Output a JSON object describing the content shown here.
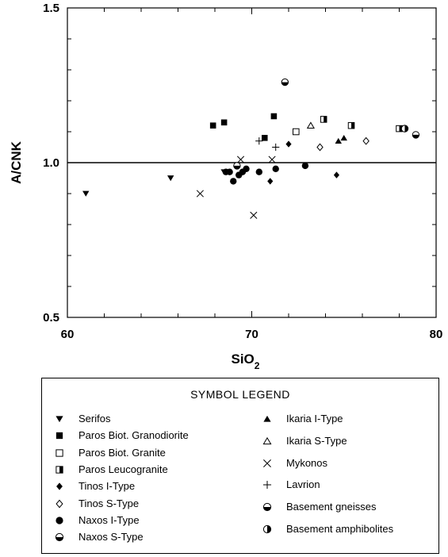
{
  "chart_data": {
    "type": "scatter",
    "xlabel": "SiO",
    "xlabel_sub": "2",
    "ylabel": "A/CNK",
    "xlim": [
      60,
      80
    ],
    "ylim": [
      0.5,
      1.5
    ],
    "x_ticks": [
      "60",
      "70",
      "80"
    ],
    "y_ticks": [
      "0.5",
      "1.0",
      "1.5"
    ],
    "reference_line_y": 1.0,
    "legend_title": "SYMBOL LEGEND",
    "legend_position": "below",
    "series": [
      {
        "name": "Serifos",
        "marker": "triangle-down-filled",
        "points": [
          [
            61.0,
            0.9
          ],
          [
            65.6,
            0.95
          ],
          [
            68.5,
            0.97
          ]
        ]
      },
      {
        "name": "Paros Biot. Granodiorite",
        "marker": "square-filled",
        "points": [
          [
            67.9,
            1.12
          ],
          [
            68.5,
            1.13
          ],
          [
            70.7,
            1.08
          ],
          [
            71.2,
            1.15
          ]
        ]
      },
      {
        "name": "Paros Biot. Granite",
        "marker": "square-open",
        "points": [
          [
            72.4,
            1.1
          ]
        ]
      },
      {
        "name": "Paros Leucogranite",
        "marker": "square-half",
        "points": [
          [
            73.9,
            1.14
          ],
          [
            75.4,
            1.12
          ],
          [
            78.0,
            1.11
          ]
        ]
      },
      {
        "name": "Tinos I-Type",
        "marker": "diamond-filled",
        "points": [
          [
            71.0,
            0.94
          ],
          [
            72.0,
            1.06
          ],
          [
            74.6,
            0.96
          ]
        ]
      },
      {
        "name": "Tinos S-Type",
        "marker": "diamond-open",
        "points": [
          [
            73.7,
            1.05
          ],
          [
            76.2,
            1.07
          ]
        ]
      },
      {
        "name": "Naxos I-Type",
        "marker": "circle-filled",
        "points": [
          [
            68.6,
            0.97
          ],
          [
            68.8,
            0.97
          ],
          [
            69.0,
            0.94
          ],
          [
            69.3,
            0.96
          ],
          [
            69.5,
            0.97
          ],
          [
            69.7,
            0.98
          ],
          [
            70.4,
            0.97
          ],
          [
            71.3,
            0.98
          ],
          [
            72.9,
            0.99
          ]
        ]
      },
      {
        "name": "Naxos S-Type",
        "marker": "circle-half-bottom",
        "points": [
          [
            69.2,
            0.99
          ],
          [
            71.8,
            1.26
          ]
        ]
      },
      {
        "name": "Ikaria I-Type",
        "marker": "triangle-up-filled",
        "points": [
          [
            74.7,
            1.07
          ],
          [
            75.0,
            1.08
          ]
        ]
      },
      {
        "name": "Ikaria S-Type",
        "marker": "triangle-up-open",
        "points": [
          [
            73.2,
            1.12
          ]
        ]
      },
      {
        "name": "Mykonos",
        "marker": "cross-x",
        "points": [
          [
            67.2,
            0.9
          ],
          [
            69.4,
            1.01
          ],
          [
            70.1,
            0.83
          ],
          [
            71.1,
            1.01
          ]
        ]
      },
      {
        "name": "Lavrion",
        "marker": "plus",
        "points": [
          [
            70.4,
            1.07
          ],
          [
            71.3,
            1.05
          ]
        ]
      },
      {
        "name": "Basement gneisses",
        "marker": "circle-half-bottom",
        "points": [
          [
            78.9,
            1.09
          ]
        ]
      },
      {
        "name": "Basement amphibolites",
        "marker": "circle-half-right",
        "points": [
          [
            78.3,
            1.11
          ]
        ]
      }
    ]
  }
}
